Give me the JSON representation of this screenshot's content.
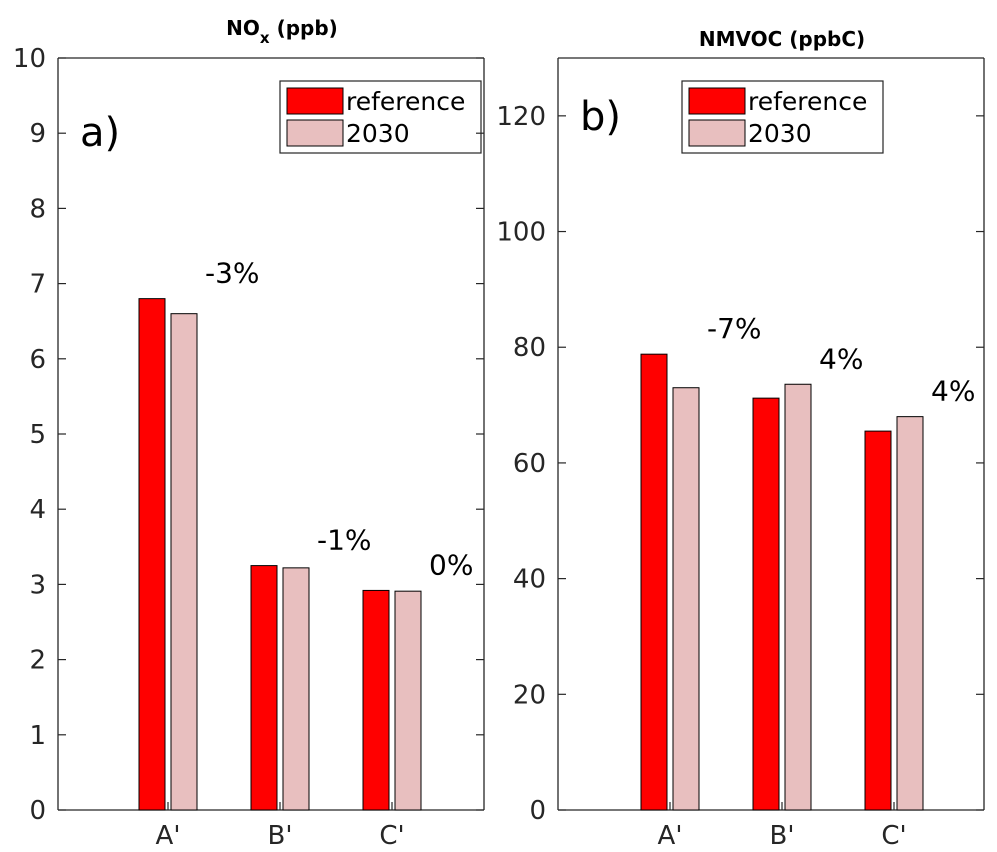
{
  "colors": {
    "reference": "#ff0000",
    "scenario": "#e8bfbf",
    "axis": "#262626"
  },
  "legend": {
    "placement": "top-right",
    "entries": [
      "reference",
      "2030"
    ]
  },
  "chart_data": [
    {
      "type": "bar",
      "panel": "a)",
      "title_main": "NO",
      "title_sub": "x",
      "title_tail": " (ppb)",
      "categories": [
        "A'",
        "B'",
        "C'"
      ],
      "series": [
        {
          "name": "reference",
          "values": [
            6.8,
            3.25,
            2.92
          ]
        },
        {
          "name": "2030",
          "values": [
            6.6,
            3.22,
            2.91
          ]
        }
      ],
      "annotations": [
        "-3%",
        "-1%",
        "0%"
      ],
      "ylim": [
        0,
        10
      ],
      "yticks": [
        "0",
        "1",
        "2",
        "3",
        "4",
        "5",
        "6",
        "7",
        "8",
        "9",
        "10"
      ]
    },
    {
      "type": "bar",
      "panel": "b)",
      "title_main": "NMVOC (ppbC)",
      "title_sub": "",
      "title_tail": "",
      "categories": [
        "A'",
        "B'",
        "C'"
      ],
      "series": [
        {
          "name": "reference",
          "values": [
            78.8,
            71.2,
            65.5
          ]
        },
        {
          "name": "2030",
          "values": [
            73.0,
            73.6,
            68.0
          ]
        }
      ],
      "annotations": [
        "-7%",
        "4%",
        "4%"
      ],
      "ylim": [
        0,
        130
      ],
      "yticks": [
        "0",
        "20",
        "40",
        "60",
        "80",
        "100",
        "120"
      ]
    }
  ]
}
